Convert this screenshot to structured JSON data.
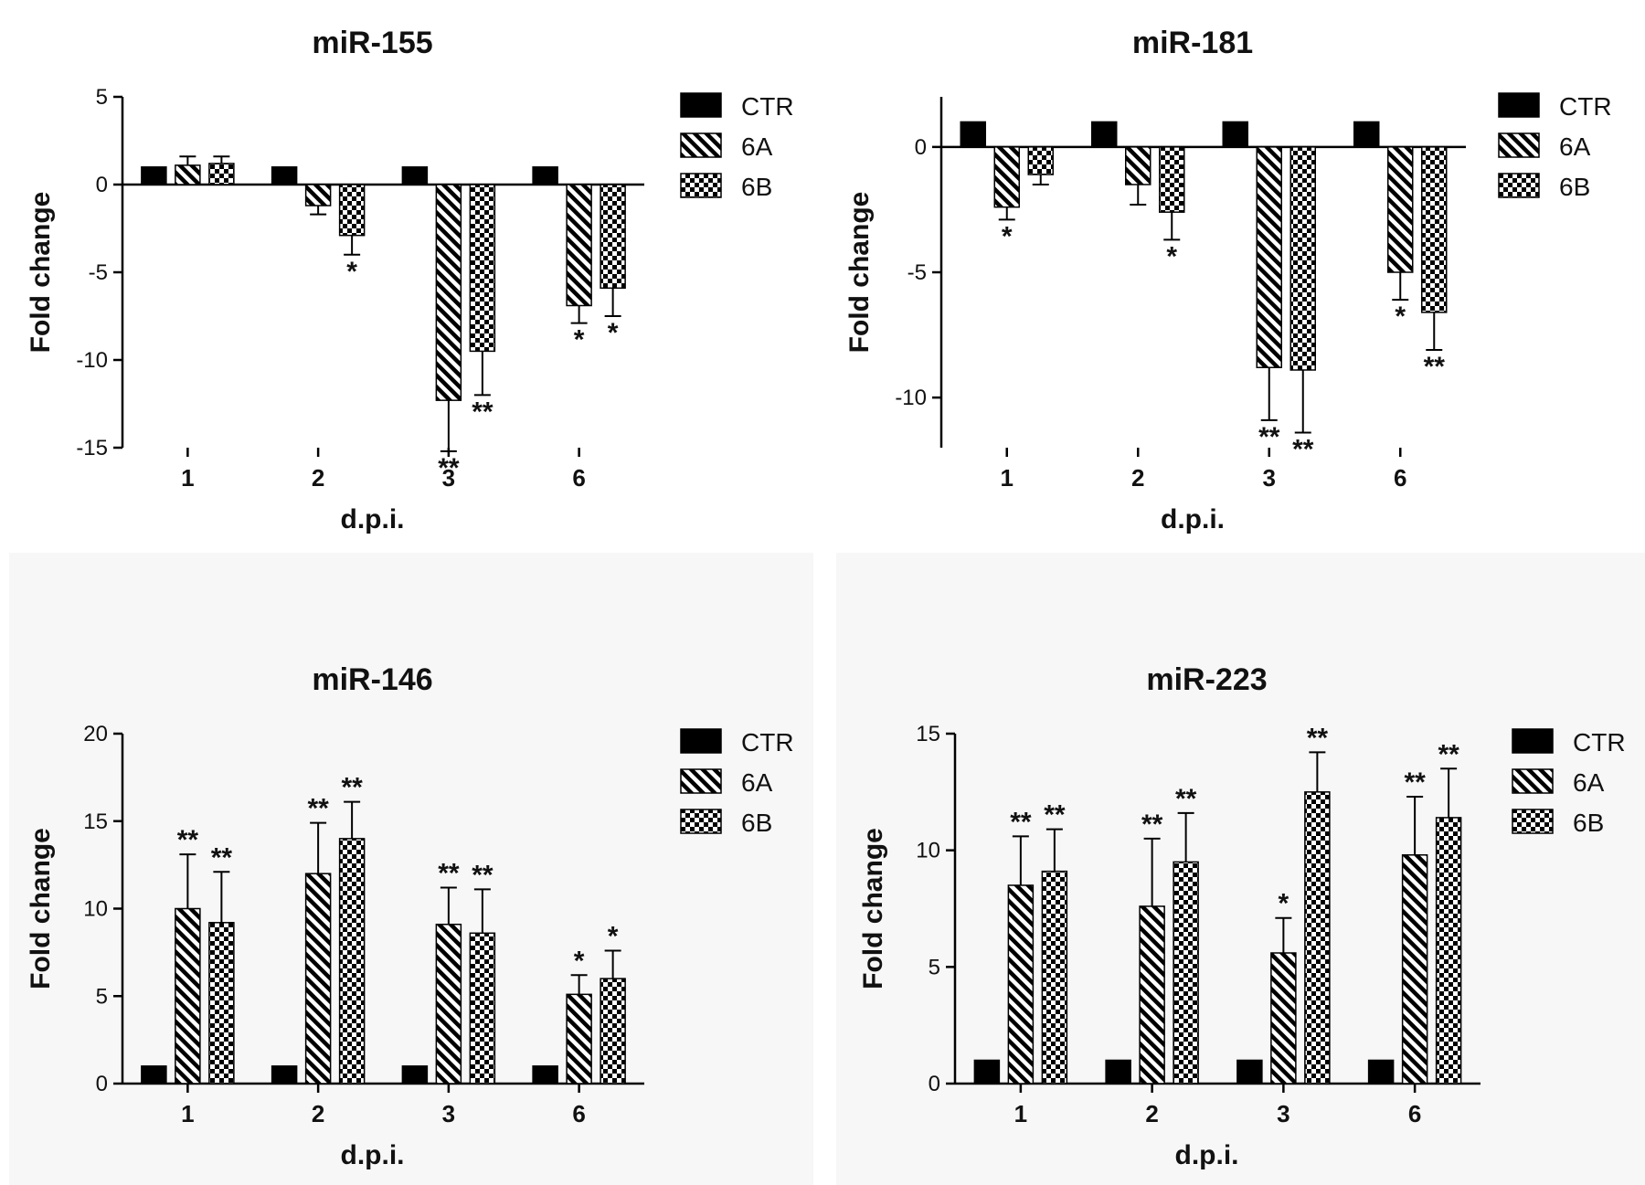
{
  "figure": {
    "legend": [
      {
        "key": "CTR",
        "label": "CTR",
        "pattern": "solid"
      },
      {
        "key": "6A",
        "label": "6A",
        "pattern": "hatch"
      },
      {
        "key": "6B",
        "label": "6B",
        "pattern": "checker"
      }
    ],
    "colors": {
      "bar": "#000000",
      "axis": "#000000",
      "panel_bg": "#f7f7f7",
      "page_bg": "#ffffff"
    }
  },
  "chart_data": [
    {
      "id": "mir155",
      "type": "bar",
      "title": "miR-155",
      "xlabel": "d.p.i.",
      "ylabel": "Fold change",
      "categories": [
        "1",
        "2",
        "3",
        "6"
      ],
      "ylim": [
        -15,
        5
      ],
      "yticks": [
        5,
        0,
        -5,
        -10,
        -15
      ],
      "series": [
        {
          "name": "CTR",
          "values": [
            1,
            1,
            1,
            1
          ],
          "errors": [
            0,
            0,
            0,
            0
          ],
          "sig": [
            "",
            "",
            "",
            ""
          ]
        },
        {
          "name": "6A",
          "values": [
            1.1,
            -1.2,
            -12.3,
            -6.9
          ],
          "errors": [
            0.5,
            0.5,
            2.9,
            1.0
          ],
          "sig": [
            "",
            "",
            "**",
            "*"
          ]
        },
        {
          "name": "6B",
          "values": [
            1.2,
            -2.9,
            -9.5,
            -5.9
          ],
          "errors": [
            0.4,
            1.1,
            2.5,
            1.6
          ],
          "sig": [
            "",
            "*",
            "**",
            "*"
          ]
        }
      ]
    },
    {
      "id": "mir181",
      "type": "bar",
      "title": "miR-181",
      "xlabel": "d.p.i.",
      "ylabel": "Fold change",
      "categories": [
        "1",
        "2",
        "3",
        "6"
      ],
      "ylim": [
        -12,
        2
      ],
      "yticks": [
        0,
        -5,
        -10
      ],
      "series": [
        {
          "name": "CTR",
          "values": [
            1,
            1,
            1,
            1
          ],
          "errors": [
            0,
            0,
            0,
            0
          ],
          "sig": [
            "",
            "",
            "",
            ""
          ]
        },
        {
          "name": "6A",
          "values": [
            -2.4,
            -1.5,
            -8.8,
            -5.0
          ],
          "errors": [
            0.5,
            0.8,
            2.1,
            1.1
          ],
          "sig": [
            "*",
            "",
            "**",
            "*"
          ]
        },
        {
          "name": "6B",
          "values": [
            -1.1,
            -2.6,
            -8.9,
            -6.6
          ],
          "errors": [
            0.4,
            1.1,
            2.5,
            1.5
          ],
          "sig": [
            "",
            "*",
            "**",
            "**"
          ]
        }
      ]
    },
    {
      "id": "mir146",
      "type": "bar",
      "title": "miR-146",
      "xlabel": "d.p.i.",
      "ylabel": "Fold change",
      "categories": [
        "1",
        "2",
        "3",
        "6"
      ],
      "ylim": [
        0,
        20
      ],
      "yticks": [
        20,
        15,
        10,
        5,
        0
      ],
      "series": [
        {
          "name": "CTR",
          "values": [
            1,
            1,
            1,
            1
          ],
          "errors": [
            0,
            0,
            0,
            0
          ],
          "sig": [
            "",
            "",
            "",
            ""
          ]
        },
        {
          "name": "6A",
          "values": [
            10.0,
            12.0,
            9.1,
            5.1
          ],
          "errors": [
            3.1,
            2.9,
            2.1,
            1.1
          ],
          "sig": [
            "**",
            "**",
            "**",
            "*"
          ]
        },
        {
          "name": "6B",
          "values": [
            9.2,
            14.0,
            8.6,
            6.0
          ],
          "errors": [
            2.9,
            2.1,
            2.5,
            1.6
          ],
          "sig": [
            "**",
            "**",
            "**",
            "*"
          ]
        }
      ]
    },
    {
      "id": "mir223",
      "type": "bar",
      "title": "miR-223",
      "xlabel": "d.p.i.",
      "ylabel": "Fold change",
      "categories": [
        "1",
        "2",
        "3",
        "6"
      ],
      "ylim": [
        0,
        15
      ],
      "yticks": [
        15,
        10,
        5,
        0
      ],
      "series": [
        {
          "name": "CTR",
          "values": [
            1,
            1,
            1,
            1
          ],
          "errors": [
            0,
            0,
            0,
            0
          ],
          "sig": [
            "",
            "",
            "",
            ""
          ]
        },
        {
          "name": "6A",
          "values": [
            8.5,
            7.6,
            5.6,
            9.8
          ],
          "errors": [
            2.1,
            2.9,
            1.5,
            2.5
          ],
          "sig": [
            "**",
            "**",
            "*",
            "**"
          ]
        },
        {
          "name": "6B",
          "values": [
            9.1,
            9.5,
            12.5,
            11.4
          ],
          "errors": [
            1.8,
            2.1,
            1.7,
            2.1
          ],
          "sig": [
            "**",
            "**",
            "**",
            "**"
          ]
        }
      ]
    }
  ]
}
